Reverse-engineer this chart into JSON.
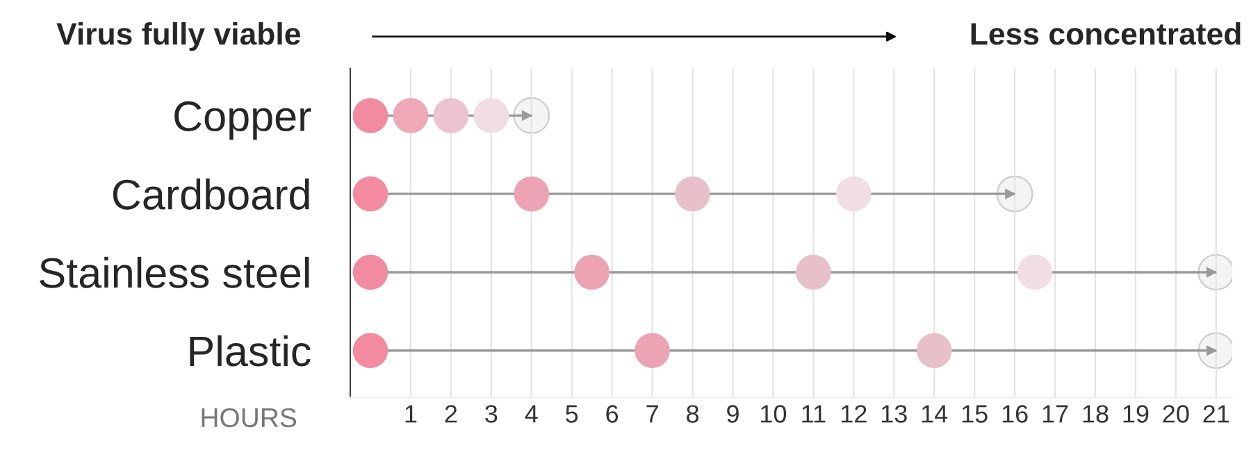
{
  "chart_data": {
    "type": "scatter",
    "orientation": "horizontal",
    "xlabel": "HOURS",
    "annotations": [
      "Virus fully viable",
      "Less concentrated"
    ],
    "categories": [
      "Copper",
      "Cardboard",
      "Stainless steel",
      "Plastic"
    ],
    "series": [
      {
        "type": "bar",
        "color": "#9a9a9a",
        "values": [
          4,
          16,
          21,
          21
        ]
      },
      {
        "values": [
          0,
          0,
          0,
          0
        ],
        "colors": [
          "#f28ba0",
          "#f28ba0",
          "#f28ba0",
          "#f28ba0"
        ]
      },
      {
        "values": [
          1,
          4,
          5.5,
          7
        ],
        "colors": [
          "#eea8b8",
          "#eca3b3",
          "#eca3b3",
          "#eca3b3"
        ]
      },
      {
        "values": [
          2,
          8,
          11,
          14
        ],
        "colors": [
          "#ecc4cf",
          "#e8c0ca",
          "#e8c0ca",
          "#e8c0ca"
        ]
      },
      {
        "values": [
          3,
          12,
          16.5,
          null
        ],
        "colors": [
          "#f2dde2",
          "#f2dde2",
          "#f2dde2",
          null
        ]
      },
      {
        "values": [
          4,
          16,
          21,
          21
        ],
        "colors": [
          "#f4f4f4",
          "#f4f4f4",
          "#f4f4f4",
          "#f4f4f4"
        ]
      }
    ],
    "xlim": [
      -0.5,
      21.4
    ],
    "xticks": [
      1,
      2,
      3,
      4,
      5,
      6,
      7,
      8,
      9,
      10,
      11,
      12,
      13,
      14,
      15,
      16,
      17,
      18,
      19,
      20,
      21
    ],
    "grid": "x",
    "marker": "circle"
  }
}
